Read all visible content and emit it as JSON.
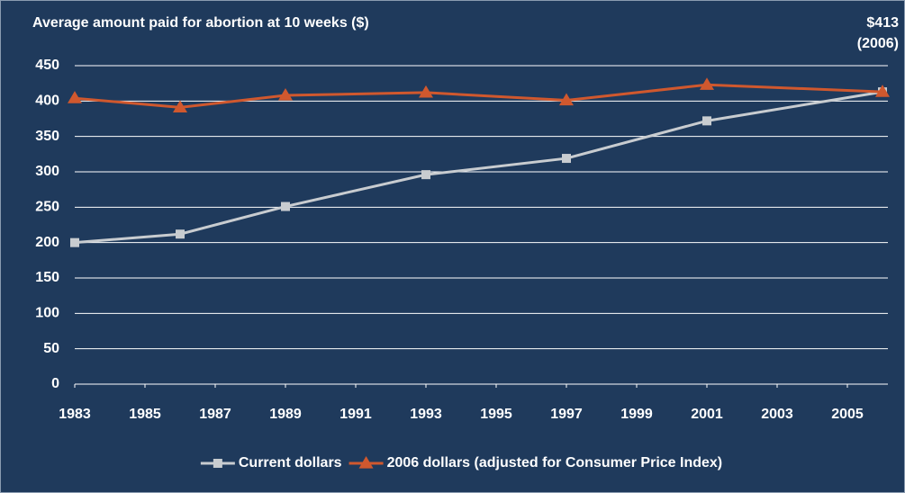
{
  "chart_data": {
    "type": "line",
    "title": "Average amount paid for abortion at 10 weeks ($)",
    "annotation": [
      "$413",
      "(2006)"
    ],
    "x": [
      1983,
      1986,
      1989,
      1993,
      1997,
      2001,
      2006
    ],
    "xlim": [
      1983,
      2006
    ],
    "xticks": [
      1983,
      1985,
      1987,
      1989,
      1991,
      1993,
      1995,
      1997,
      1999,
      2001,
      2003,
      2005
    ],
    "ylim": [
      0,
      450
    ],
    "yticks": [
      0,
      50,
      100,
      150,
      200,
      250,
      300,
      350,
      400,
      450
    ],
    "grid": true,
    "legend": "bottom",
    "series": [
      {
        "name": "Current dollars",
        "color": "#c8ccd0",
        "marker": "square",
        "values": [
          200,
          212,
          251,
          296,
          319,
          372,
          413
        ]
      },
      {
        "name": "2006 dollars (adjusted for Consumer Price Index)",
        "color": "#d0582e",
        "marker": "triangle",
        "values": [
          404,
          391,
          408,
          412,
          401,
          423,
          413
        ]
      }
    ]
  }
}
